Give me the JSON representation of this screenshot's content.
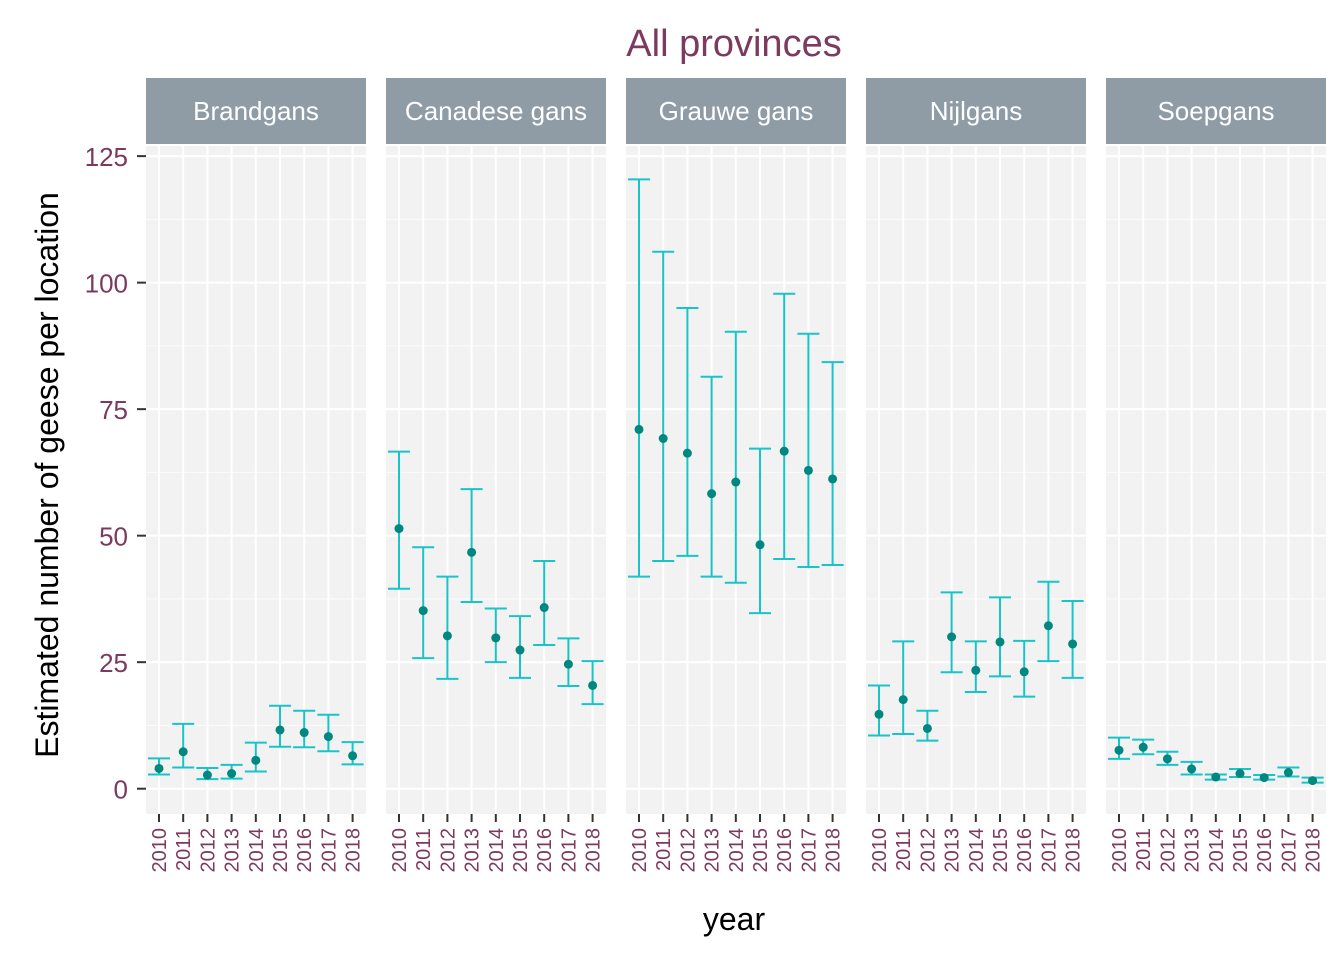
{
  "colors": {
    "title": "#7b3a5e",
    "tick_label": "#7b3a5e",
    "axis_label": "#000000",
    "strip_bg": "#8f9ca6",
    "strip_text": "#ffffff",
    "panel_bg": "#f2f2f2",
    "grid_major": "#ffffff",
    "errorbar": "#19c4c9",
    "point": "#00877f"
  },
  "chart_data": {
    "type": "scatter",
    "title": "All provinces",
    "xlabel": "year",
    "ylabel": "Estimated number of geese per location",
    "ylim": [
      -5,
      127
    ],
    "yticks": [
      0,
      25,
      50,
      75,
      100,
      125
    ],
    "x": [
      "2010",
      "2011",
      "2012",
      "2013",
      "2014",
      "2015",
      "2016",
      "2017",
      "2018"
    ],
    "grid": true,
    "facets": [
      {
        "name": "Brandgans",
        "estimate": [
          4.0,
          7.3,
          2.7,
          3.0,
          5.6,
          11.6,
          11.1,
          10.3,
          6.5
        ],
        "lower": [
          2.8,
          4.2,
          1.9,
          2.0,
          3.4,
          8.3,
          8.2,
          7.4,
          4.8
        ],
        "upper": [
          6.0,
          12.8,
          4.1,
          4.7,
          9.1,
          16.4,
          15.4,
          14.6,
          9.2
        ]
      },
      {
        "name": "Canadese gans",
        "estimate": [
          51.4,
          35.2,
          30.2,
          46.7,
          29.8,
          27.4,
          35.8,
          24.6,
          20.4
        ],
        "lower": [
          39.5,
          25.8,
          21.7,
          36.9,
          25.0,
          21.9,
          28.4,
          20.3,
          16.7
        ],
        "upper": [
          66.6,
          47.7,
          41.9,
          59.2,
          35.6,
          34.1,
          45.0,
          29.7,
          25.2
        ]
      },
      {
        "name": "Grauwe gans",
        "estimate": [
          71.0,
          69.2,
          66.3,
          58.3,
          60.6,
          48.2,
          66.7,
          62.9,
          61.2
        ],
        "lower": [
          41.9,
          45.0,
          46.0,
          41.9,
          40.7,
          34.7,
          45.4,
          43.8,
          44.2
        ],
        "upper": [
          120.4,
          106.1,
          95.0,
          81.4,
          90.3,
          67.2,
          97.8,
          89.9,
          84.3
        ]
      },
      {
        "name": "Nijlgans",
        "estimate": [
          14.7,
          17.6,
          11.9,
          30.0,
          23.4,
          29.0,
          23.1,
          32.2,
          28.6
        ],
        "lower": [
          10.5,
          10.8,
          9.5,
          23.0,
          19.1,
          22.2,
          18.2,
          25.2,
          21.9
        ],
        "upper": [
          20.4,
          29.1,
          15.4,
          38.8,
          29.1,
          37.8,
          29.2,
          40.9,
          37.1
        ]
      },
      {
        "name": "Soepgans",
        "estimate": [
          7.6,
          8.2,
          5.9,
          3.9,
          2.3,
          3.0,
          2.2,
          3.2,
          1.6
        ],
        "lower": [
          5.9,
          6.8,
          4.7,
          2.8,
          1.8,
          2.3,
          1.8,
          2.4,
          1.2
        ],
        "upper": [
          10.1,
          9.7,
          7.3,
          5.3,
          2.8,
          3.9,
          2.7,
          4.2,
          2.2
        ]
      }
    ]
  }
}
